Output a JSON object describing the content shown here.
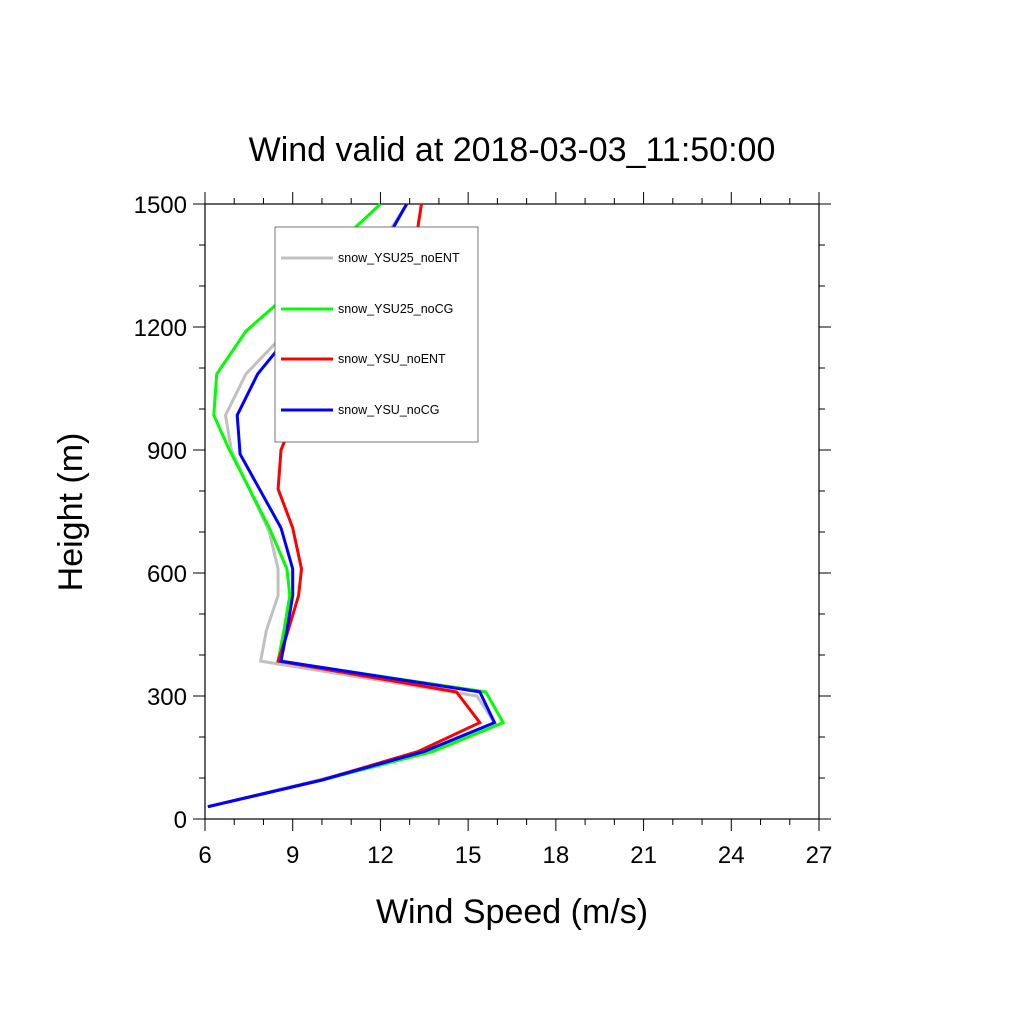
{
  "chart_data": {
    "type": "line",
    "title": "Wind valid at 2018-03-03_11:50:00",
    "xlabel": "Wind Speed (m/s)",
    "ylabel": "Height (m)",
    "xlim": [
      6,
      27
    ],
    "ylim": [
      0,
      1500
    ],
    "xticks": [
      "6",
      "9",
      "12",
      "15",
      "18",
      "21",
      "24",
      "27"
    ],
    "yticks": [
      "0",
      "300",
      "600",
      "900",
      "1200",
      "1500"
    ],
    "grid": false,
    "legend_position": "top-left",
    "series": [
      {
        "name": "snow_YSU25_noENT",
        "color": "#c0c0c0",
        "points": [
          [
            6.1,
            30
          ],
          [
            9.9,
            95
          ],
          [
            13.6,
            165
          ],
          [
            15.9,
            235
          ],
          [
            15.3,
            300
          ],
          [
            7.9,
            385
          ],
          [
            8.1,
            460
          ],
          [
            8.5,
            545
          ],
          [
            8.5,
            610
          ],
          [
            8.2,
            700
          ],
          [
            6.9,
            900
          ],
          [
            6.7,
            985
          ],
          [
            7.4,
            1085
          ],
          [
            8.8,
            1190
          ],
          [
            10.3,
            1290
          ],
          [
            12.0,
            1400
          ],
          [
            12.9,
            1500
          ]
        ]
      },
      {
        "name": "snow_YSU25_noCG",
        "color": "#00ff00",
        "points": [
          [
            6.1,
            30
          ],
          [
            10.0,
            95
          ],
          [
            13.8,
            165
          ],
          [
            16.2,
            235
          ],
          [
            15.6,
            310
          ],
          [
            8.5,
            385
          ],
          [
            8.7,
            460
          ],
          [
            8.9,
            545
          ],
          [
            8.8,
            610
          ],
          [
            8.2,
            710
          ],
          [
            6.8,
            905
          ],
          [
            6.3,
            985
          ],
          [
            6.4,
            1085
          ],
          [
            7.4,
            1190
          ],
          [
            9.0,
            1290
          ],
          [
            10.5,
            1400
          ],
          [
            12.0,
            1500
          ]
        ]
      },
      {
        "name": "snow_YSU_noENT",
        "color": "#ff0000",
        "points": [
          [
            6.1,
            30
          ],
          [
            10.0,
            95
          ],
          [
            13.3,
            165
          ],
          [
            15.4,
            235
          ],
          [
            14.6,
            310
          ],
          [
            8.5,
            385
          ],
          [
            8.8,
            450
          ],
          [
            9.2,
            545
          ],
          [
            9.3,
            610
          ],
          [
            9.0,
            710
          ],
          [
            8.5,
            805
          ],
          [
            8.6,
            900
          ],
          [
            9.2,
            1005
          ],
          [
            9.8,
            1085
          ],
          [
            11.0,
            1190
          ],
          [
            12.3,
            1295
          ],
          [
            13.2,
            1405
          ],
          [
            13.4,
            1500
          ]
        ]
      },
      {
        "name": "snow_YSU_noCG",
        "color": "#0000ff",
        "points": [
          [
            6.1,
            30
          ],
          [
            10.0,
            95
          ],
          [
            13.5,
            165
          ],
          [
            15.9,
            235
          ],
          [
            15.4,
            310
          ],
          [
            8.6,
            385
          ],
          [
            8.8,
            460
          ],
          [
            9.0,
            545
          ],
          [
            9.0,
            610
          ],
          [
            8.6,
            710
          ],
          [
            7.2,
            890
          ],
          [
            7.1,
            985
          ],
          [
            7.8,
            1085
          ],
          [
            9.0,
            1190
          ],
          [
            10.6,
            1300
          ],
          [
            12.1,
            1400
          ],
          [
            12.9,
            1500
          ]
        ]
      }
    ]
  }
}
